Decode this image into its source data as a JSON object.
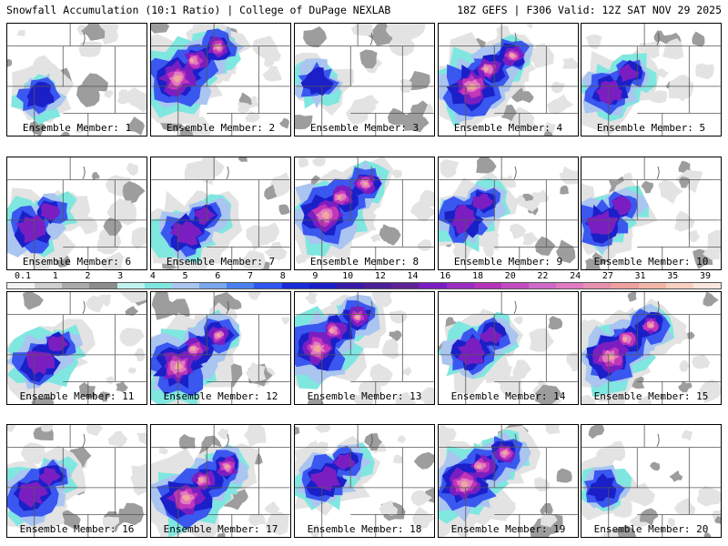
{
  "header": {
    "left": "Snowfall Accumulation (10:1 Ratio) | College of DuPage NEXLAB",
    "right": "18Z GEFS | F306 Valid: 12Z SAT NOV 29 2025"
  },
  "colors": {
    "light_gray": "#e3e3e3",
    "gray": "#9d9d9d",
    "cyan": "#7fe7e0",
    "light_blue": "#a9c5f0",
    "blue": "#3a57f0",
    "dark_blue": "#1a1fc8",
    "violet": "#7a1ec2",
    "magenta": "#c236b8",
    "pink": "#e27ac2",
    "salmon": "#f2a79c"
  },
  "colorbar": {
    "labels": [
      "0.1",
      "1",
      "2",
      "3",
      "4",
      "5",
      "6",
      "7",
      "8",
      "9",
      "10",
      "12",
      "14",
      "16",
      "18",
      "20",
      "22",
      "24",
      "27",
      "31",
      "35",
      "39"
    ],
    "colors": [
      "#f2f2f2",
      "#cfcfcf",
      "#aaaaaa",
      "#8c8c8c",
      "#bff2ef",
      "#7fe7e0",
      "#a9c5f0",
      "#7aa6ee",
      "#4a7ff0",
      "#2f56f0",
      "#1a2bd8",
      "#1a1fc8",
      "#3a1aa8",
      "#4b1f96",
      "#5e2496",
      "#7a1ec2",
      "#9a2cbf",
      "#b533b8",
      "#c24cc2",
      "#d06ac9",
      "#e27ac2",
      "#e890b0",
      "#ee9f9f",
      "#f2b7a8",
      "#f7d0c3",
      "#fbe6de"
    ]
  },
  "panels": [
    {
      "label": "Ensemble Member: 1",
      "intensity": 1
    },
    {
      "label": "Ensemble Member: 2",
      "intensity": 3
    },
    {
      "label": "Ensemble Member: 3",
      "intensity": 1
    },
    {
      "label": "Ensemble Member: 4",
      "intensity": 3
    },
    {
      "label": "Ensemble Member: 5",
      "intensity": 2
    },
    {
      "label": "Ensemble Member: 6",
      "intensity": 2
    },
    {
      "label": "Ensemble Member: 7",
      "intensity": 2
    },
    {
      "label": "Ensemble Member: 8",
      "intensity": 3
    },
    {
      "label": "Ensemble Member: 9",
      "intensity": 2
    },
    {
      "label": "Ensemble Member: 10",
      "intensity": 2
    },
    {
      "label": "Ensemble Member: 11",
      "intensity": 2
    },
    {
      "label": "Ensemble Member: 12",
      "intensity": 3
    },
    {
      "label": "Ensemble Member: 13",
      "intensity": 3
    },
    {
      "label": "Ensemble Member: 14",
      "intensity": 2
    },
    {
      "label": "Ensemble Member: 15",
      "intensity": 3
    },
    {
      "label": "Ensemble Member: 16",
      "intensity": 2
    },
    {
      "label": "Ensemble Member: 17",
      "intensity": 3
    },
    {
      "label": "Ensemble Member: 18",
      "intensity": 2
    },
    {
      "label": "Ensemble Member: 19",
      "intensity": 3
    },
    {
      "label": "Ensemble Member: 20",
      "intensity": 1
    }
  ]
}
